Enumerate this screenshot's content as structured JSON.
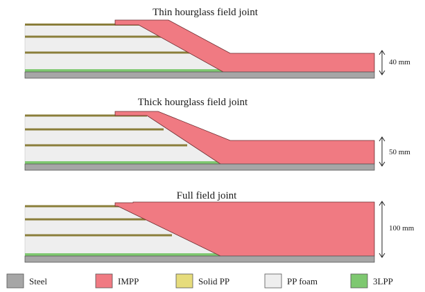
{
  "colors": {
    "steel": "#a6a6a6",
    "impp": "#f07a82",
    "solid_pp": "#e6dc7c",
    "pp_foam": "#eeeeee",
    "three_lpp": "#7ec870",
    "outline": "#555555"
  },
  "panels": [
    {
      "title": "Thin hourglass  field joint",
      "dimension": "40 mm"
    },
    {
      "title": "Thick hourglass  field joint",
      "dimension": "50 mm"
    },
    {
      "title": "Full field joint",
      "dimension": "100 mm"
    }
  ],
  "legend": [
    {
      "label": "Steel",
      "color_key": "steel"
    },
    {
      "label": "IMPP",
      "color_key": "impp"
    },
    {
      "label": "Solid PP",
      "color_key": "solid_pp"
    },
    {
      "label": "PP foam",
      "color_key": "pp_foam"
    },
    {
      "label": "3LPP",
      "color_key": "three_lpp"
    }
  ]
}
